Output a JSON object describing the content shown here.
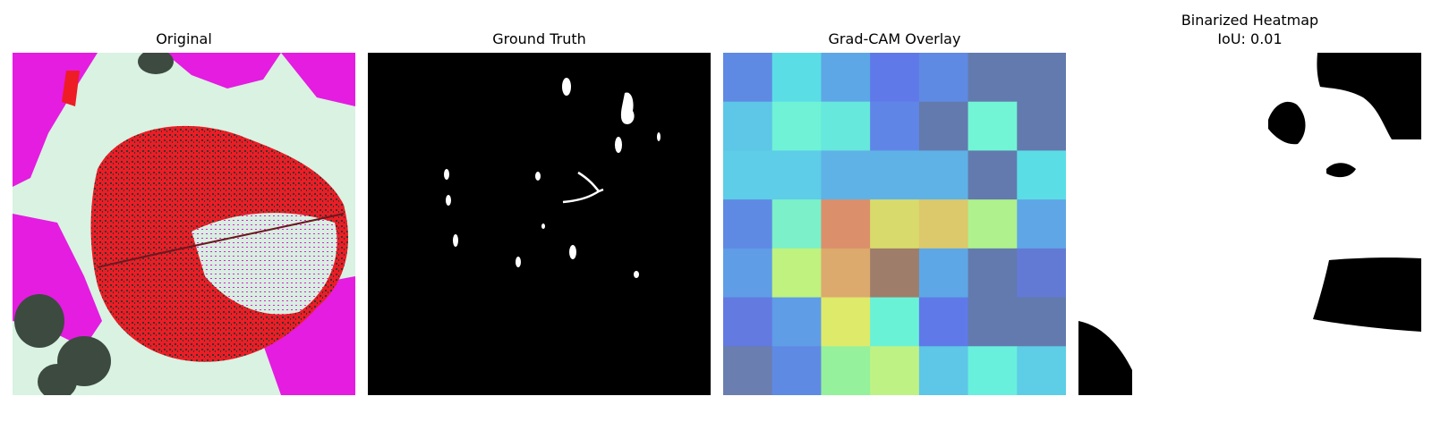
{
  "panels": [
    {
      "title": "Original"
    },
    {
      "title": "Ground Truth"
    },
    {
      "title": "Grad-CAM Overlay",
      "grid_colors": [
        [
          "#5f8ae3",
          "#5bdde6",
          "#5ea7e6",
          "#5f7ae8",
          "#5f8ae3",
          "#637aae",
          "#637aae"
        ],
        [
          "#5ec6e6",
          "#6ff2d6",
          "#66e8dc",
          "#5f86e6",
          "#637aae",
          "#72f5d5",
          "#637aae"
        ],
        [
          "#5dcde8",
          "#5dcde8",
          "#5fb2e6",
          "#5fb2e6",
          "#5fb2e6",
          "#637aae",
          "#5bdde6"
        ],
        [
          "#5f8ae3",
          "#7cf0c8",
          "#db906b",
          "#d8db6b",
          "#dbc96b",
          "#aff18c",
          "#5fa6e6"
        ],
        [
          "#5f9de6",
          "#bff27e",
          "#dcaa6c",
          "#9e7d6a",
          "#5ea7e6",
          "#637aae",
          "#637ad5"
        ],
        [
          "#637ae1",
          "#5f9de6",
          "#deea6a",
          "#6af2d6",
          "#5f7ae8",
          "#637aae",
          "#637aae"
        ],
        [
          "#6b7eb0",
          "#5f8ae3",
          "#95f19c",
          "#bff285",
          "#5ec6e6",
          "#68f0dc",
          "#5ecde6"
        ]
      ]
    },
    {
      "title": "Binarized Heatmap",
      "subtitle": "IoU: 0.01"
    }
  ]
}
